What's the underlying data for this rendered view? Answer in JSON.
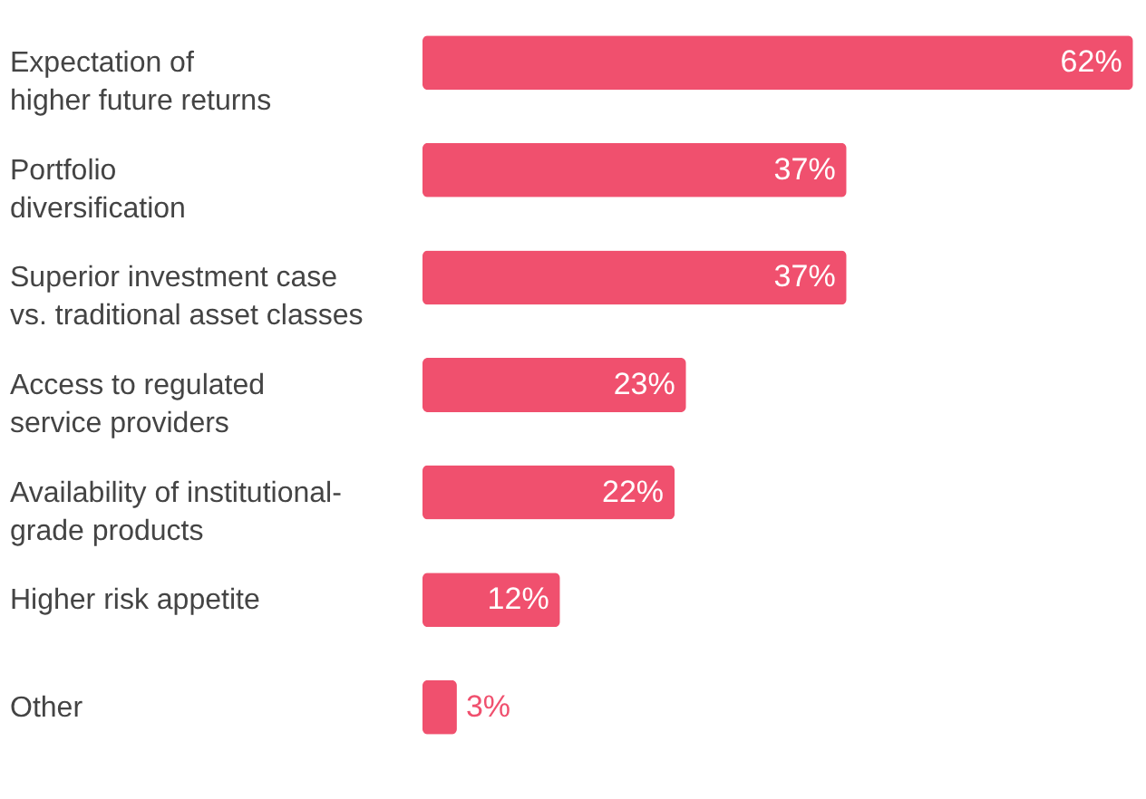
{
  "chart_data": {
    "type": "bar",
    "orientation": "horizontal",
    "categories": [
      "Expectation of\nhigher future returns",
      "Portfolio\ndiversification",
      "Superior investment case\nvs. traditional asset classes",
      "Access to regulated\nservice providers",
      "Availability of institutional-\ngrade products",
      "Higher risk appetite",
      "Other"
    ],
    "values": [
      62,
      37,
      37,
      23,
      22,
      12,
      3
    ],
    "value_labels": [
      "62%",
      "37%",
      "37%",
      "23%",
      "22%",
      "12%",
      "3%"
    ],
    "color": "#f0506e",
    "xlim": [
      0,
      62.5
    ],
    "tick_labels": "y"
  }
}
